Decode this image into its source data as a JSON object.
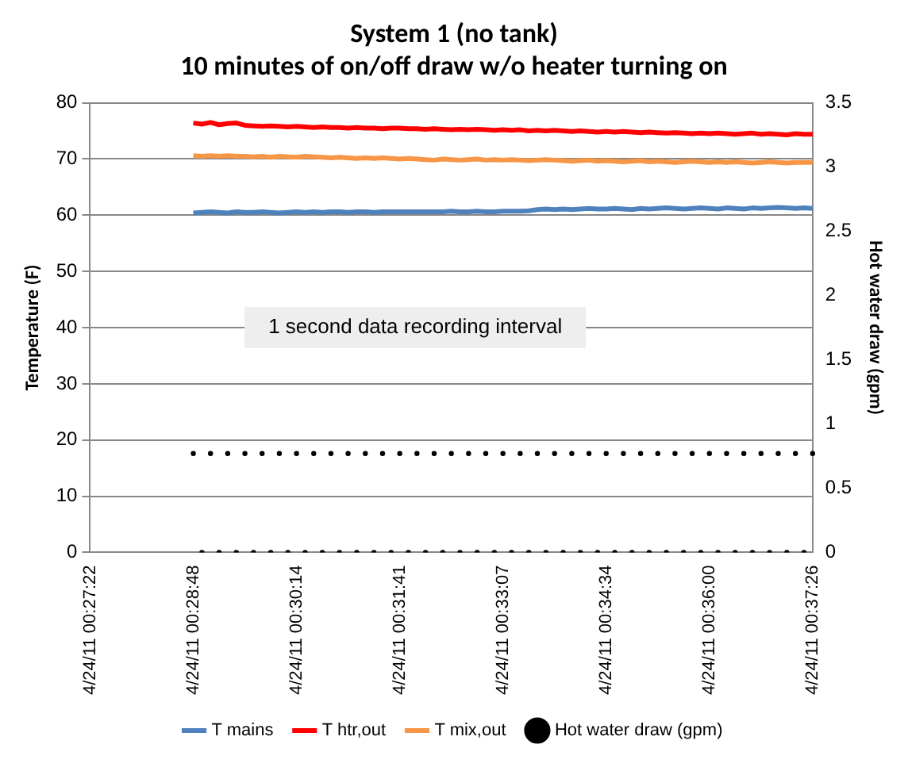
{
  "chart_data": {
    "type": "line",
    "title": "System 1 (no tank)",
    "subtitle": "10 minutes of on/off draw w/o heater turning on",
    "ylabel": "Temperature (F)",
    "y2label": "Hot water draw (gpm)",
    "categories": [
      "4/24/11 00:27:22",
      null,
      null,
      null,
      null,
      null,
      null,
      null,
      null,
      null,
      null,
      null,
      "4/24/11 00:28:48",
      null,
      null,
      null,
      null,
      null,
      null,
      null,
      null,
      null,
      null,
      null,
      "4/24/11 00:30:14",
      null,
      null,
      null,
      null,
      null,
      null,
      null,
      null,
      null,
      null,
      null,
      "4/24/11 00:31:41",
      null,
      null,
      null,
      null,
      null,
      null,
      null,
      null,
      null,
      null,
      null,
      "4/24/11 00:33:07",
      null,
      null,
      null,
      null,
      null,
      null,
      null,
      null,
      null,
      null,
      null,
      "4/24/11 00:34:34",
      null,
      null,
      null,
      null,
      null,
      null,
      null,
      null,
      null,
      null,
      null,
      "4/24/11 00:36:00",
      null,
      null,
      null,
      null,
      null,
      null,
      null,
      null,
      null,
      null,
      null,
      "4/24/11 00:37:26"
    ],
    "series": [
      {
        "name": "T mains",
        "color": "#4f81bd",
        "values": [
          null,
          null,
          null,
          null,
          null,
          null,
          null,
          null,
          null,
          null,
          null,
          null,
          60.4,
          60.5,
          60.6,
          60.5,
          60.4,
          60.6,
          60.5,
          60.5,
          60.6,
          60.5,
          60.4,
          60.5,
          60.6,
          60.5,
          60.6,
          60.5,
          60.6,
          60.6,
          60.5,
          60.6,
          60.6,
          60.5,
          60.6,
          60.6,
          60.6,
          60.6,
          60.6,
          60.6,
          60.6,
          60.6,
          60.7,
          60.6,
          60.6,
          60.7,
          60.6,
          60.6,
          60.7,
          60.7,
          60.7,
          60.8,
          61.0,
          61.1,
          61.0,
          61.1,
          61.0,
          61.1,
          61.2,
          61.1,
          61.1,
          61.2,
          61.1,
          61.0,
          61.2,
          61.1,
          61.2,
          61.3,
          61.2,
          61.1,
          61.2,
          61.3,
          61.2,
          61.1,
          61.3,
          61.2,
          61.1,
          61.3,
          61.2,
          61.3,
          61.4,
          61.3,
          61.2,
          61.3,
          61.2
        ]
      },
      {
        "name": "T htr,out",
        "color": "#ff0000",
        "values": [
          null,
          null,
          null,
          null,
          null,
          null,
          null,
          null,
          null,
          null,
          null,
          null,
          76.4,
          76.2,
          76.5,
          76.1,
          76.3,
          76.4,
          76.0,
          75.9,
          75.8,
          75.9,
          75.8,
          75.7,
          75.8,
          75.7,
          75.6,
          75.7,
          75.6,
          75.6,
          75.5,
          75.6,
          75.5,
          75.5,
          75.4,
          75.5,
          75.5,
          75.4,
          75.4,
          75.3,
          75.4,
          75.3,
          75.2,
          75.3,
          75.2,
          75.3,
          75.2,
          75.1,
          75.2,
          75.1,
          75.2,
          75.0,
          75.1,
          75.0,
          75.1,
          75.0,
          74.9,
          75.0,
          74.9,
          74.8,
          74.9,
          74.8,
          74.9,
          74.8,
          74.7,
          74.8,
          74.7,
          74.6,
          74.7,
          74.6,
          74.5,
          74.6,
          74.5,
          74.6,
          74.5,
          74.4,
          74.5,
          74.6,
          74.4,
          74.5,
          74.4,
          74.3,
          74.5,
          74.4,
          74.4
        ]
      },
      {
        "name": "T mix,out",
        "color": "#f79646",
        "values": [
          null,
          null,
          null,
          null,
          null,
          null,
          null,
          null,
          null,
          null,
          null,
          null,
          70.6,
          70.5,
          70.6,
          70.5,
          70.6,
          70.5,
          70.5,
          70.4,
          70.5,
          70.3,
          70.5,
          70.4,
          70.3,
          70.5,
          70.4,
          70.3,
          70.2,
          70.3,
          70.2,
          70.1,
          70.2,
          70.1,
          70.2,
          70.1,
          70.0,
          70.1,
          70.0,
          69.9,
          69.8,
          70.0,
          69.9,
          69.8,
          69.9,
          70.0,
          69.8,
          69.9,
          69.8,
          69.9,
          69.8,
          69.7,
          69.8,
          69.9,
          69.8,
          69.7,
          69.6,
          69.7,
          69.8,
          69.6,
          69.7,
          69.6,
          69.5,
          69.6,
          69.7,
          69.5,
          69.6,
          69.5,
          69.4,
          69.5,
          69.6,
          69.5,
          69.4,
          69.5,
          69.4,
          69.5,
          69.4,
          69.3,
          69.4,
          69.5,
          69.4,
          69.3,
          69.4,
          69.4,
          69.4
        ]
      },
      {
        "name": "Hot water draw (gpm)",
        "type": "scatter",
        "axis": "y2",
        "marker": "circle",
        "color": "#000000",
        "values": [
          null,
          null,
          null,
          null,
          null,
          null,
          null,
          null,
          null,
          null,
          null,
          null,
          0.77,
          0,
          0.77,
          0,
          0.77,
          0,
          0.77,
          0,
          0.77,
          0,
          0.77,
          0,
          0.77,
          0,
          0.77,
          0,
          0.77,
          0,
          0.77,
          0,
          0.77,
          0,
          0.77,
          0,
          0.77,
          0,
          0.77,
          0,
          0.77,
          0,
          0.77,
          0,
          0.77,
          0,
          0.77,
          0,
          0.77,
          0,
          0.77,
          0,
          0.77,
          0,
          0.77,
          0,
          0.77,
          0,
          0.77,
          0,
          0.77,
          0,
          0.77,
          0,
          0.77,
          0,
          0.77,
          0,
          0.77,
          0,
          0.77,
          0,
          0.77,
          0,
          0.77,
          0,
          0.77,
          0,
          0.77,
          0,
          0.77,
          0,
          0.77,
          0,
          0.77
        ]
      }
    ],
    "ylim": [
      0,
      80
    ],
    "yticks": [
      0,
      10,
      20,
      30,
      40,
      50,
      60,
      70,
      80
    ],
    "y2lim": [
      0,
      3.5
    ],
    "y2ticks": [
      0,
      0.5,
      1,
      1.5,
      2,
      2.5,
      3,
      3.5
    ],
    "grid": "y",
    "legend": "bottom",
    "annotations": [
      "1 second data recording interval"
    ]
  }
}
